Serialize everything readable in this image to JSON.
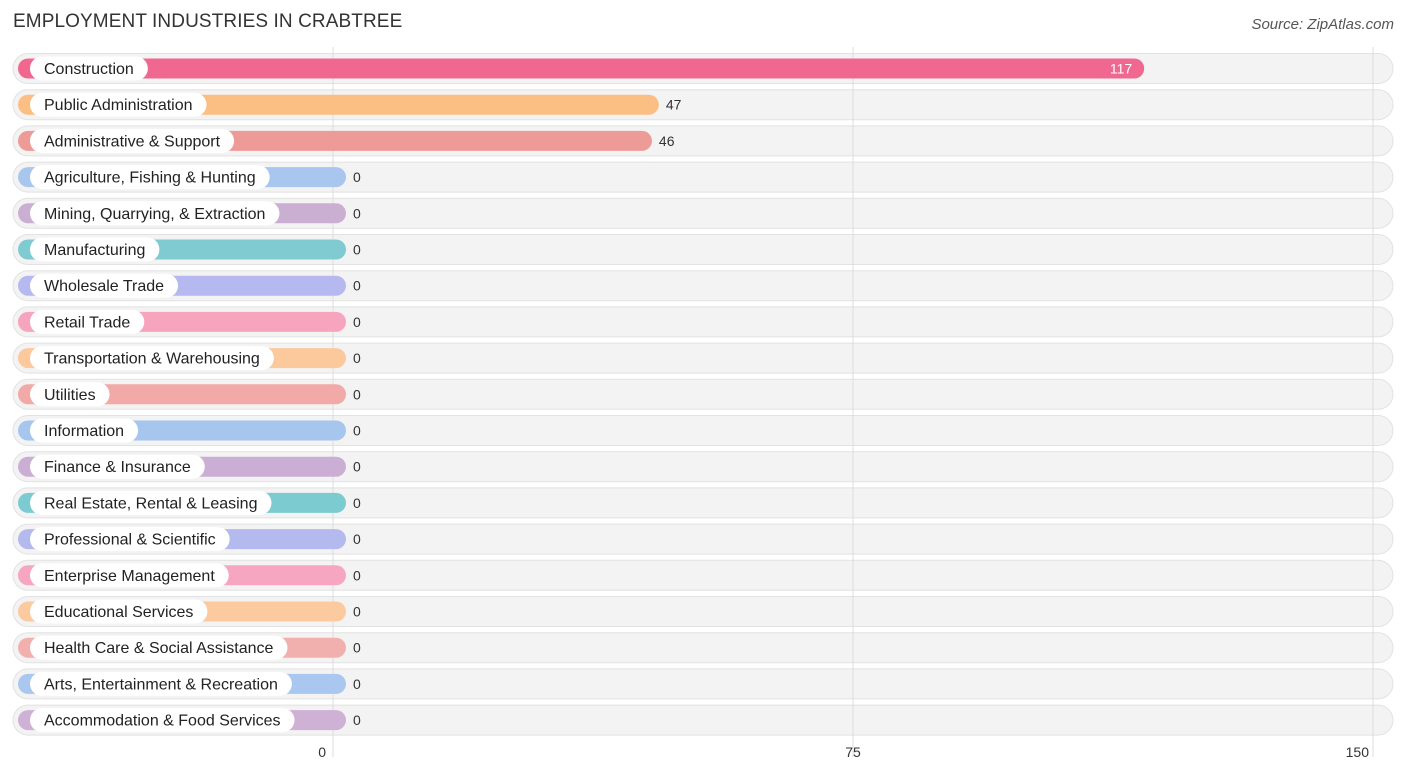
{
  "header": {
    "title": "EMPLOYMENT INDUSTRIES IN CRABTREE",
    "source": "Source: ZipAtlas.com"
  },
  "chart_data": {
    "type": "bar",
    "orientation": "horizontal",
    "title": "EMPLOYMENT INDUSTRIES IN CRABTREE",
    "xlabel": "",
    "ylabel": "",
    "xlim": [
      0,
      150
    ],
    "ticks": [
      0,
      75,
      150
    ],
    "grid": true,
    "categories": [
      "Construction",
      "Public Administration",
      "Administrative & Support",
      "Agriculture, Fishing & Hunting",
      "Mining, Quarrying, & Extraction",
      "Manufacturing",
      "Wholesale Trade",
      "Retail Trade",
      "Transportation & Warehousing",
      "Utilities",
      "Information",
      "Finance & Insurance",
      "Real Estate, Rental & Leasing",
      "Professional & Scientific",
      "Enterprise Management",
      "Educational Services",
      "Health Care & Social Assistance",
      "Arts, Entertainment & Recreation",
      "Accommodation & Food Services"
    ],
    "values": [
      117,
      47,
      46,
      0,
      0,
      0,
      0,
      0,
      0,
      0,
      0,
      0,
      0,
      0,
      0,
      0,
      0,
      0,
      0
    ],
    "colors": [
      "#f06890",
      "#fbbf84",
      "#ec9b97",
      "#a9c6ee",
      "#cbafd2",
      "#7fcbd1",
      "#b5b9ef",
      "#f7a4bf",
      "#fbc99c",
      "#f1aaa8",
      "#a6c6ee",
      "#cbaed3",
      "#7ccbd1",
      "#b4b9ee",
      "#f7a6c1",
      "#fbca9f",
      "#f1b0ad",
      "#a9c7ef",
      "#ceb1d4"
    ]
  }
}
